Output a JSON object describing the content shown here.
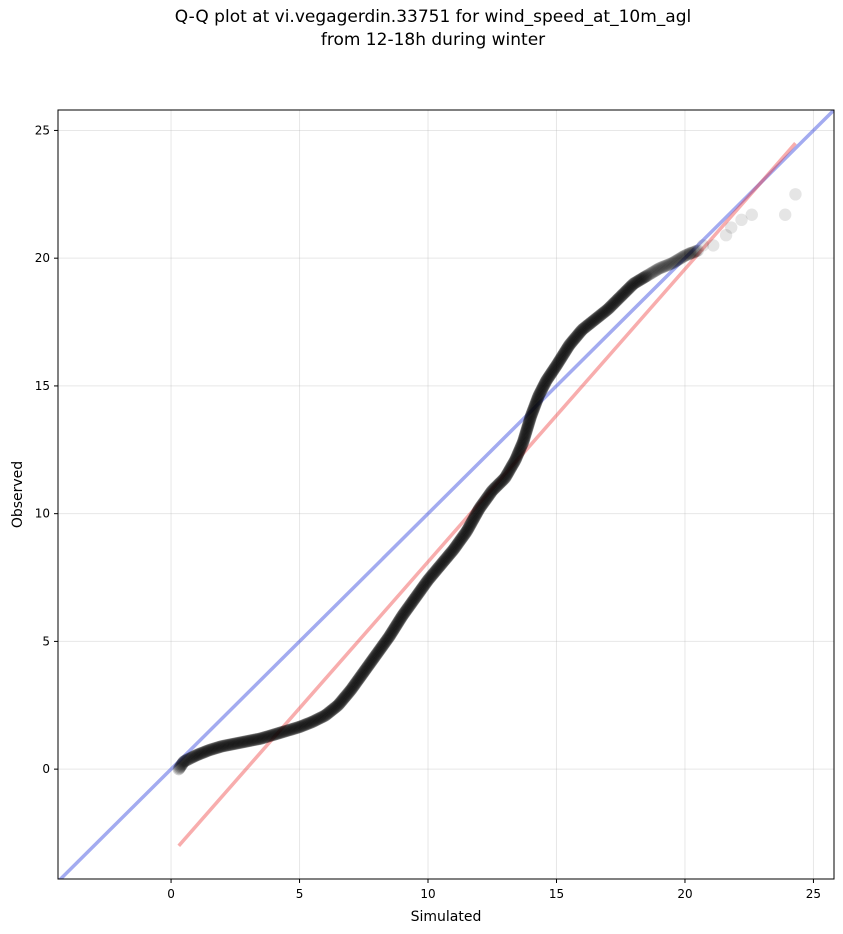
{
  "title_line1": "Q-Q plot at vi.vegagerdin.33751 for wind_speed_at_10m_agl",
  "title_line2": "from 12-18h during winter",
  "chart_data": {
    "type": "scatter",
    "title": "Q-Q plot at vi.vegagerdin.33751 for wind_speed_at_10m_agl from 12-18h during winter",
    "xlabel": "Simulated",
    "ylabel": "Observed",
    "xlim": [
      -4.4,
      25.8
    ],
    "ylim": [
      -4.3,
      25.8
    ],
    "xticks": [
      0,
      5,
      10,
      15,
      20,
      25
    ],
    "yticks": [
      0,
      5,
      10,
      15,
      20,
      25
    ],
    "grid": true,
    "colors": {
      "points": "#000000",
      "identity_line": "#3344dd",
      "fit_line": "#ee3333"
    },
    "identity_line": {
      "x": [
        -4.4,
        25.8
      ],
      "y": [
        -4.4,
        25.8
      ]
    },
    "fit_line": {
      "x": [
        0.3,
        24.3
      ],
      "y": [
        -3.0,
        24.5
      ]
    },
    "quantile_curve": [
      [
        0.3,
        0.0
      ],
      [
        0.5,
        0.3
      ],
      [
        1.0,
        0.55
      ],
      [
        1.5,
        0.75
      ],
      [
        2.0,
        0.9
      ],
      [
        2.5,
        1.0
      ],
      [
        3.0,
        1.1
      ],
      [
        3.5,
        1.2
      ],
      [
        4.0,
        1.35
      ],
      [
        4.5,
        1.5
      ],
      [
        5.0,
        1.65
      ],
      [
        5.5,
        1.85
      ],
      [
        6.0,
        2.1
      ],
      [
        6.5,
        2.5
      ],
      [
        7.0,
        3.1
      ],
      [
        7.5,
        3.8
      ],
      [
        8.0,
        4.5
      ],
      [
        8.5,
        5.2
      ],
      [
        9.0,
        6.0
      ],
      [
        9.5,
        6.7
      ],
      [
        10.0,
        7.4
      ],
      [
        10.5,
        8.0
      ],
      [
        11.0,
        8.6
      ],
      [
        11.5,
        9.3
      ],
      [
        12.0,
        10.2
      ],
      [
        12.5,
        10.9
      ],
      [
        13.0,
        11.4
      ],
      [
        13.4,
        12.1
      ],
      [
        13.7,
        12.8
      ],
      [
        14.0,
        13.8
      ],
      [
        14.3,
        14.6
      ],
      [
        14.6,
        15.2
      ],
      [
        15.0,
        15.8
      ],
      [
        15.5,
        16.6
      ],
      [
        16.0,
        17.2
      ],
      [
        16.5,
        17.6
      ],
      [
        17.0,
        18.0
      ],
      [
        17.5,
        18.5
      ],
      [
        18.0,
        19.0
      ],
      [
        18.5,
        19.3
      ],
      [
        19.0,
        19.6
      ],
      [
        19.5,
        19.8
      ],
      [
        20.0,
        20.1
      ],
      [
        20.5,
        20.3
      ]
    ],
    "tail_points": [
      [
        20.2,
        20.2
      ],
      [
        20.7,
        20.5
      ],
      [
        21.1,
        20.5
      ],
      [
        21.6,
        20.9
      ],
      [
        21.8,
        21.2
      ],
      [
        22.2,
        21.5
      ],
      [
        22.6,
        21.7
      ],
      [
        23.9,
        21.7
      ],
      [
        24.3,
        22.5
      ]
    ],
    "point_count": 600
  }
}
